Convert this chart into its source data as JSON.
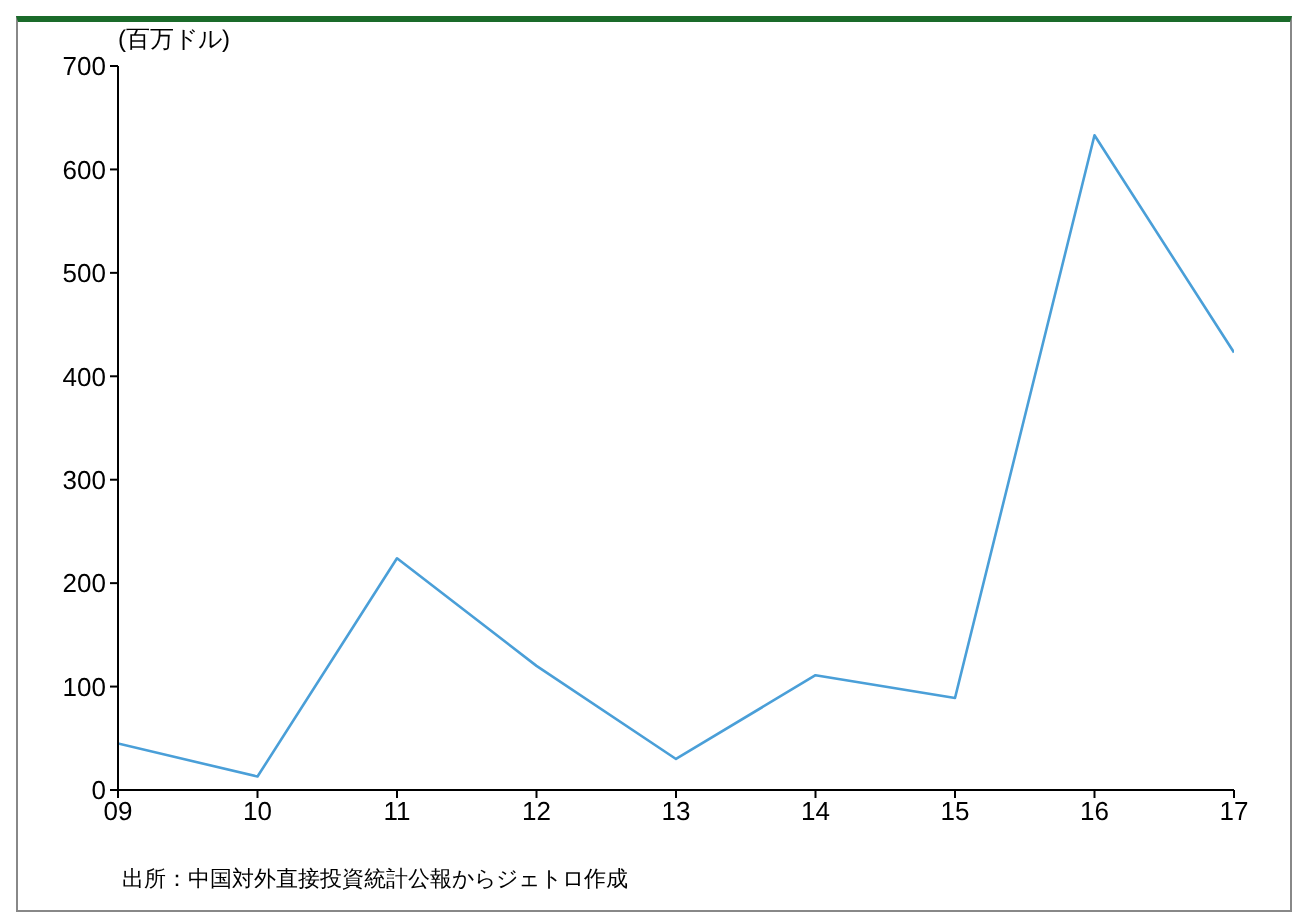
{
  "chart_data": {
    "type": "line",
    "ylabel": "(百万ドル)",
    "categories": [
      "09",
      "10",
      "11",
      "12",
      "13",
      "14",
      "15",
      "16",
      "17"
    ],
    "series": [
      {
        "color": "#4a9fd8",
        "values": [
          45,
          13,
          224,
          120,
          30,
          111,
          89,
          633,
          423
        ]
      }
    ],
    "ylim": [
      0,
      700
    ],
    "yticks": [
      0,
      100,
      200,
      300,
      400,
      500,
      600,
      700
    ],
    "grid": false,
    "legend": false,
    "marker": "none",
    "annotations": [
      "出所：中国対外直接投資統計公報からジェトロ作成"
    ]
  }
}
